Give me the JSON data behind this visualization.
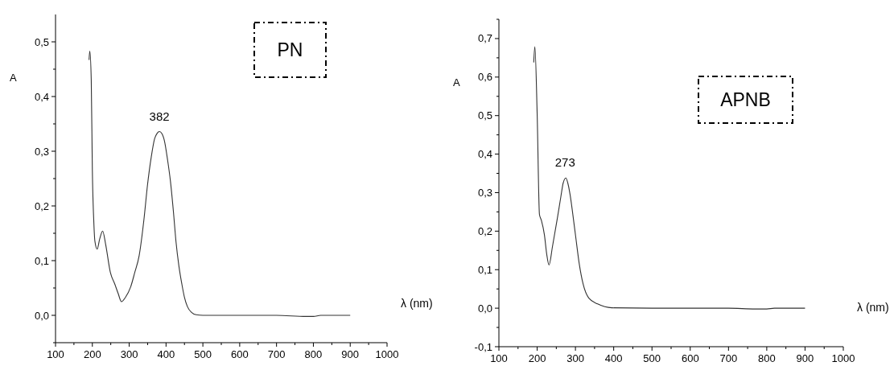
{
  "chart_data": [
    {
      "type": "line",
      "title": "PN",
      "xlabel": "λ (nm)",
      "ylabel": "A",
      "xlim": [
        100,
        1000
      ],
      "ylim": [
        -0.05,
        0.55
      ],
      "xticks": [
        100,
        {
          "value": 150,
          "label": null
        },
        200,
        {
          "value": 250,
          "label": null
        },
        300,
        {
          "value": 350,
          "label": null
        },
        400,
        {
          "value": 450,
          "label": null
        },
        500,
        {
          "value": 550,
          "label": null
        },
        600,
        {
          "value": 650,
          "label": null
        },
        700,
        {
          "value": 750,
          "label": null
        },
        800,
        {
          "value": 850,
          "label": null
        },
        900,
        {
          "value": 950,
          "label": null
        },
        1000
      ],
      "yticks": [
        {
          "value": -0.05,
          "label": null
        },
        {
          "value": 0,
          "label": "0,0"
        },
        {
          "value": 0.05,
          "label": null
        },
        {
          "value": 0.1,
          "label": "0,1"
        },
        {
          "value": 0.15,
          "label": null
        },
        {
          "value": 0.2,
          "label": "0,2"
        },
        {
          "value": 0.25,
          "label": null
        },
        {
          "value": 0.3,
          "label": "0,3"
        },
        {
          "value": 0.35,
          "label": null
        },
        {
          "value": 0.4,
          "label": "0,4"
        },
        {
          "value": 0.45,
          "label": null
        },
        {
          "value": 0.5,
          "label": "0,5"
        }
      ],
      "grid": false,
      "series": [
        {
          "color": "#333333",
          "x": [
            191,
            193,
            197,
            200,
            204,
            207,
            213,
            220,
            228,
            236,
            249,
            261,
            270,
            279,
            290,
            304,
            315,
            327,
            340,
            350,
            360,
            369,
            376,
            382,
            389,
            396,
            404,
            412,
            420,
            427,
            435,
            443,
            450,
            458,
            470,
            482,
            500,
            600,
            700,
            780,
            790,
            800,
            820,
            900
          ],
          "values": [
            0.467,
            0.483,
            0.43,
            0.265,
            0.17,
            0.135,
            0.121,
            0.14,
            0.154,
            0.13,
            0.078,
            0.057,
            0.04,
            0.025,
            0.033,
            0.052,
            0.078,
            0.109,
            0.175,
            0.24,
            0.29,
            0.323,
            0.333,
            0.336,
            0.332,
            0.318,
            0.285,
            0.245,
            0.19,
            0.135,
            0.09,
            0.057,
            0.033,
            0.016,
            0.005,
            0.001,
            0,
            0,
            0,
            -0.002,
            -0.002,
            -0.002,
            0,
            0
          ]
        }
      ],
      "annotations": [
        {
          "text": "382",
          "x": 382,
          "y": 0.336
        }
      ]
    },
    {
      "type": "line",
      "title": "APNB",
      "xlabel": "λ (nm)",
      "ylabel": "A",
      "xlim": [
        100,
        1000
      ],
      "ylim": [
        -0.1,
        0.75
      ],
      "xticks": [
        100,
        {
          "value": 150,
          "label": null
        },
        200,
        {
          "value": 250,
          "label": null
        },
        300,
        {
          "value": 350,
          "label": null
        },
        400,
        {
          "value": 450,
          "label": null
        },
        500,
        {
          "value": 550,
          "label": null
        },
        600,
        {
          "value": 650,
          "label": null
        },
        700,
        {
          "value": 750,
          "label": null
        },
        800,
        {
          "value": 850,
          "label": null
        },
        900,
        {
          "value": 950,
          "label": null
        },
        1000
      ],
      "yticks": [
        {
          "value": -0.1,
          "label": "-0,1"
        },
        {
          "value": -0.05,
          "label": null
        },
        {
          "value": 0,
          "label": "0,0"
        },
        {
          "value": 0.05,
          "label": null
        },
        {
          "value": 0.1,
          "label": "0,1"
        },
        {
          "value": 0.15,
          "label": null
        },
        {
          "value": 0.2,
          "label": "0,2"
        },
        {
          "value": 0.25,
          "label": null
        },
        {
          "value": 0.3,
          "label": "0,3"
        },
        {
          "value": 0.35,
          "label": null
        },
        {
          "value": 0.4,
          "label": "0,4"
        },
        {
          "value": 0.45,
          "label": null
        },
        {
          "value": 0.5,
          "label": "0,5"
        },
        {
          "value": 0.55,
          "label": null
        },
        {
          "value": 0.6,
          "label": "0,6"
        },
        {
          "value": 0.65,
          "label": null
        },
        {
          "value": 0.7,
          "label": "0,7"
        },
        {
          "value": 0.75,
          "label": null
        }
      ],
      "grid": false,
      "series": [
        {
          "color": "#333333",
          "x": [
            191,
            194,
            200,
            206,
            211,
            219,
            225,
            231,
            240,
            253,
            262,
            268,
            275,
            280,
            286,
            293,
            301,
            310,
            320,
            335,
            358,
            395,
            500,
            600,
            700,
            770,
            800,
            820,
            900
          ],
          "values": [
            0.638,
            0.679,
            0.504,
            0.243,
            0.228,
            0.19,
            0.14,
            0.112,
            0.16,
            0.235,
            0.29,
            0.325,
            0.338,
            0.325,
            0.295,
            0.245,
            0.183,
            0.115,
            0.063,
            0.026,
            0.011,
            0.001,
            0,
            0,
            0,
            -0.002,
            -0.002,
            0,
            0
          ]
        }
      ],
      "annotations": [
        {
          "text": "273",
          "x": 273,
          "y": 0.338
        }
      ]
    }
  ]
}
